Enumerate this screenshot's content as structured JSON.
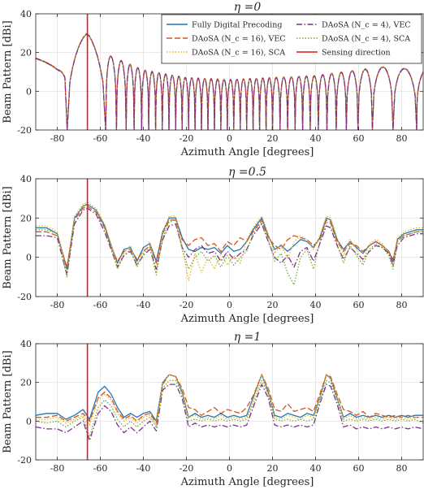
{
  "colors": {
    "fully_digital": "#1f77b4",
    "daosa16_vec": "#d95319",
    "daosa16_sca": "#edb120",
    "daosa4_vec": "#7e2f8e",
    "daosa4_sca": "#77ac30",
    "sensing": "#e0191b",
    "grid": "#e3e3e3",
    "axis": "#262626"
  },
  "legend": {
    "placement": "top-right of first panel",
    "entries": [
      {
        "key": "fully_digital",
        "label": "Fully Digital Precoding",
        "dash": "solid"
      },
      {
        "key": "daosa16_vec",
        "label": "DAoSA (N_c = 16), VEC",
        "dash": "dashed"
      },
      {
        "key": "daosa16_sca",
        "label": "DAoSA (N_c = 16), SCA",
        "dash": "dotted"
      },
      {
        "key": "daosa4_vec",
        "label": "DAoSA (N_c = 4), VEC",
        "dash": "dashdot"
      },
      {
        "key": "daosa4_sca",
        "label": "DAoSA (N_c = 4), SCA",
        "dash": "dotted"
      },
      {
        "key": "sensing",
        "label": "Sensing direction",
        "dash": "solid"
      }
    ]
  },
  "chart_data": [
    {
      "type": "line",
      "title": "η =0",
      "xlabel": "Azimuth Angle [degrees]",
      "ylabel": "Beam Pattern [dBi]",
      "xlim": [
        -90,
        90
      ],
      "ylim": [
        -20,
        40
      ],
      "xticks": [
        -80,
        -60,
        -40,
        -20,
        0,
        20,
        40,
        60,
        80
      ],
      "yticks": [
        -20,
        0,
        20,
        40
      ],
      "grid": true,
      "sensing_direction_deg": -66,
      "note_all_series_overlap": true,
      "envelope_points": [
        [
          -90,
          17
        ],
        [
          -80,
          17
        ],
        [
          -66,
          30
        ],
        [
          -55,
          18
        ],
        [
          -40,
          11
        ],
        [
          -20,
          7
        ],
        [
          0,
          6
        ],
        [
          20,
          7
        ],
        [
          40,
          8
        ],
        [
          60,
          11
        ],
        [
          75,
          13
        ],
        [
          90,
          10
        ]
      ],
      "nulls_deg": [
        -75.4,
        -57.5,
        -52.5,
        -48,
        -44.3,
        -40.8,
        -37.5,
        -34.3,
        -31.2,
        -28.1,
        -25,
        -22,
        -19,
        -16,
        -13,
        -10,
        -7,
        -4,
        -1,
        2,
        5,
        8,
        11,
        14,
        17,
        20,
        23.5,
        27,
        30.5,
        34,
        37.5,
        41.3,
        45.3,
        49.6,
        54.3,
        59.7,
        66.4,
        76,
        87
      ]
    },
    {
      "type": "line",
      "title": "η =0.5",
      "xlabel": "Azimuth Angle [degrees]",
      "ylabel": "Beam Pattern [dBi]",
      "xlim": [
        -90,
        90
      ],
      "ylim": [
        -20,
        40
      ],
      "xticks": [
        -80,
        -60,
        -40,
        -20,
        0,
        20,
        40,
        60,
        80
      ],
      "yticks": [
        -20,
        0,
        20,
        40
      ],
      "grid": true,
      "sensing_direction_deg": -66,
      "x": [
        -90,
        -85,
        -80,
        -75.5,
        -72,
        -68,
        -66,
        -62,
        -58,
        -55,
        -52,
        -49,
        -46,
        -43,
        -40,
        -37,
        -34,
        -31,
        -28,
        -25,
        -22,
        -19,
        -16,
        -13,
        -10,
        -7,
        -4,
        -1,
        2,
        5,
        8,
        11,
        15,
        18,
        21,
        24,
        27,
        30,
        33,
        36,
        39,
        42,
        45,
        47,
        50,
        53,
        56,
        59,
        62,
        65,
        68,
        71,
        74,
        76,
        78,
        81,
        84,
        87,
        90
      ],
      "series": [
        {
          "key": "fully_digital",
          "values": [
            15,
            15,
            12,
            -6,
            20,
            26,
            27,
            24,
            16,
            6,
            -3,
            4,
            5,
            -2,
            5,
            7,
            -2,
            13,
            20,
            20,
            10,
            4,
            3,
            5,
            4,
            5,
            2,
            6,
            3,
            4,
            8,
            14,
            20,
            11,
            4,
            6,
            3,
            6,
            9,
            8,
            5,
            10,
            20,
            19,
            9,
            4,
            8,
            5,
            2,
            6,
            8,
            6,
            3,
            -2,
            9,
            12,
            13,
            14,
            14
          ]
        },
        {
          "key": "daosa16_vec",
          "values": [
            13,
            13,
            11,
            -5,
            19,
            25,
            26,
            23,
            15,
            5,
            -2,
            3,
            4,
            -1,
            3,
            6,
            -3,
            12,
            19,
            19,
            9,
            6,
            9,
            10,
            6,
            7,
            3,
            8,
            6,
            10,
            8,
            13,
            19,
            10,
            6,
            4,
            9,
            11,
            10,
            9,
            6,
            9,
            19,
            18,
            8,
            3,
            7,
            6,
            3,
            6,
            8,
            6,
            3,
            -1,
            8,
            11,
            12,
            13,
            13
          ]
        },
        {
          "key": "daosa16_sca",
          "values": [
            16,
            16,
            13,
            -8,
            21,
            27,
            28,
            25,
            17,
            7,
            -5,
            2,
            6,
            -4,
            4,
            8,
            -8,
            12,
            21,
            21,
            6,
            -12,
            2,
            -8,
            0,
            -6,
            2,
            -4,
            1,
            -3,
            9,
            15,
            21,
            12,
            2,
            7,
            -1,
            8,
            11,
            9,
            4,
            11,
            21,
            20,
            10,
            1,
            9,
            4,
            -2,
            7,
            9,
            7,
            2,
            -4,
            10,
            13,
            14,
            15,
            15
          ]
        },
        {
          "key": "daosa4_vec",
          "values": [
            11,
            11,
            10,
            -9,
            17,
            24,
            25,
            22,
            13,
            4,
            -5,
            1,
            3,
            -4,
            1,
            4,
            -6,
            9,
            16,
            17,
            5,
            0,
            4,
            6,
            2,
            3,
            -2,
            3,
            -1,
            2,
            4,
            11,
            17,
            8,
            0,
            -3,
            1,
            -5,
            3,
            5,
            -2,
            7,
            16,
            15,
            6,
            -1,
            5,
            2,
            -1,
            3,
            6,
            5,
            2,
            -4,
            6,
            10,
            11,
            12,
            12
          ]
        },
        {
          "key": "daosa4_sca",
          "values": [
            14,
            14,
            12,
            -10,
            20,
            26,
            27,
            24,
            15,
            5,
            -6,
            1,
            4,
            -5,
            2,
            5,
            -9,
            10,
            18,
            19,
            4,
            -6,
            0,
            3,
            -2,
            1,
            -5,
            1,
            -4,
            0,
            3,
            12,
            18,
            9,
            -2,
            2,
            -8,
            -14,
            0,
            4,
            -6,
            8,
            18,
            17,
            7,
            -3,
            6,
            1,
            -4,
            4,
            7,
            5,
            1,
            -6,
            8,
            11,
            12,
            13,
            13
          ]
        }
      ]
    },
    {
      "type": "line",
      "title": "η =1",
      "xlabel": "Azimuth Angle [degrees]",
      "ylabel": "Beam Pattern [dBi]",
      "xlim": [
        -90,
        90
      ],
      "ylim": [
        -20,
        40
      ],
      "xticks": [
        -80,
        -60,
        -40,
        -20,
        0,
        20,
        40,
        60,
        80
      ],
      "yticks": [
        -20,
        0,
        20,
        40
      ],
      "grid": true,
      "sensing_direction_deg": -66,
      "x": [
        -90,
        -85,
        -80,
        -76,
        -72,
        -68,
        -65,
        -61,
        -58,
        -55,
        -52,
        -49,
        -46,
        -43,
        -40,
        -37,
        -34,
        -31,
        -28,
        -25,
        -22,
        -19,
        -16,
        -13,
        -10,
        -7,
        -4,
        -1,
        2,
        5,
        8,
        11,
        15,
        18,
        21,
        24,
        27,
        30,
        33,
        36,
        39,
        42,
        45,
        47,
        50,
        53,
        56,
        59,
        62,
        65,
        68,
        71,
        74,
        77,
        80,
        83,
        86,
        90
      ],
      "series": [
        {
          "key": "fully_digital",
          "values": [
            3,
            4,
            4,
            1,
            3,
            6,
            1,
            15,
            18,
            14,
            7,
            2,
            4,
            2,
            4,
            5,
            0,
            20,
            24,
            23,
            15,
            2,
            4,
            2,
            3,
            2,
            4,
            2,
            3,
            2,
            3,
            12,
            24,
            15,
            3,
            2,
            4,
            3,
            2,
            4,
            3,
            12,
            24,
            22,
            12,
            2,
            4,
            2,
            3,
            2,
            3,
            2,
            3,
            2,
            3,
            2,
            3,
            3
          ]
        },
        {
          "key": "daosa16_vec",
          "values": [
            2,
            2,
            3,
            0,
            2,
            4,
            0,
            12,
            15,
            12,
            5,
            1,
            3,
            0,
            3,
            4,
            -1,
            19,
            24,
            23,
            17,
            7,
            6,
            3,
            5,
            7,
            4,
            6,
            5,
            4,
            7,
            13,
            24,
            17,
            6,
            5,
            9,
            5,
            6,
            7,
            5,
            14,
            24,
            23,
            14,
            6,
            5,
            3,
            5,
            2,
            4,
            3,
            2,
            3,
            2,
            3,
            2,
            2
          ]
        },
        {
          "key": "daosa16_sca",
          "values": [
            1,
            1,
            2,
            -1,
            1,
            3,
            -2,
            11,
            14,
            11,
            4,
            0,
            2,
            -1,
            2,
            3,
            -2,
            20,
            24,
            23,
            16,
            2,
            3,
            1,
            2,
            1,
            3,
            1,
            2,
            1,
            2,
            11,
            24,
            16,
            2,
            1,
            3,
            2,
            1,
            3,
            2,
            12,
            24,
            22,
            13,
            1,
            3,
            1,
            2,
            1,
            2,
            1,
            2,
            1,
            2,
            1,
            2,
            2
          ]
        },
        {
          "key": "daosa4_vec",
          "values": [
            -3,
            -4,
            -4,
            -6,
            -3,
            0,
            -10,
            4,
            8,
            5,
            -2,
            -6,
            -3,
            -6,
            -3,
            0,
            -5,
            16,
            19,
            19,
            12,
            -3,
            -1,
            -3,
            -2,
            -3,
            -2,
            -3,
            -2,
            -3,
            -2,
            7,
            19,
            12,
            -2,
            -3,
            -2,
            -3,
            -2,
            -3,
            -2,
            9,
            19,
            18,
            9,
            -3,
            -2,
            -4,
            -3,
            -4,
            -3,
            -4,
            -3,
            -4,
            -3,
            -4,
            -3,
            -4
          ]
        },
        {
          "key": "daosa4_sca",
          "values": [
            0,
            -1,
            0,
            -3,
            0,
            2,
            -8,
            7,
            11,
            8,
            1,
            -3,
            0,
            -3,
            0,
            2,
            -3,
            17,
            21,
            21,
            14,
            0,
            1,
            0,
            1,
            0,
            1,
            0,
            1,
            0,
            1,
            9,
            21,
            14,
            1,
            0,
            1,
            0,
            1,
            0,
            1,
            10,
            21,
            20,
            11,
            0,
            1,
            0,
            1,
            0,
            1,
            0,
            1,
            0,
            1,
            0,
            1,
            -1
          ]
        }
      ]
    }
  ]
}
